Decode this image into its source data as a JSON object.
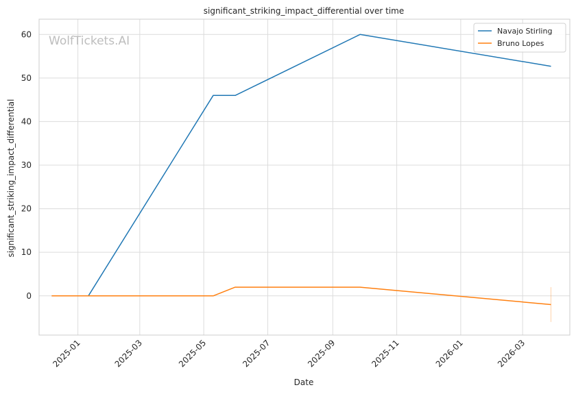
{
  "chart_data": {
    "type": "line",
    "title": "significant_striking_impact_differential over time",
    "xlabel": "Date",
    "ylabel": "significant_striking_impact_differential",
    "watermark": "WolfTickets.AI",
    "x_tick_labels": [
      "2025-01",
      "2025-03",
      "2025-05",
      "2025-07",
      "2025-09",
      "2025-11",
      "2026-01",
      "2026-03"
    ],
    "x_ticks": [
      "2025-01-01",
      "2025-03-01",
      "2025-05-01",
      "2025-07-01",
      "2025-09-01",
      "2025-11-01",
      "2026-01-01",
      "2026-03-01"
    ],
    "xlim": [
      "2024-11-25",
      "2026-04-15"
    ],
    "y_ticks": [
      0,
      10,
      20,
      30,
      40,
      50,
      60
    ],
    "y_tick_labels": [
      "0",
      "10",
      "20",
      "30",
      "40",
      "50",
      "60"
    ],
    "ylim": [
      -9,
      63.5
    ],
    "grid": true,
    "legend_position": "top-right",
    "series": [
      {
        "name": "Navajo Stirling",
        "color": "#1f77b4",
        "x": [
          "2024-12-07",
          "2025-01-11",
          "2025-05-10",
          "2025-05-31",
          "2025-09-27",
          "2026-03-28"
        ],
        "y": [
          0,
          0,
          46,
          46,
          60,
          52.7
        ]
      },
      {
        "name": "Bruno Lopes",
        "color": "#ff7f0e",
        "x": [
          "2024-12-07",
          "2025-01-11",
          "2025-05-10",
          "2025-05-31",
          "2025-09-27",
          "2026-03-28"
        ],
        "y": [
          0,
          0,
          0,
          2,
          2,
          -2
        ]
      }
    ],
    "error_bar": {
      "x": "2026-03-28",
      "low": -6,
      "high": 2,
      "color": "#ff7f0e"
    }
  }
}
